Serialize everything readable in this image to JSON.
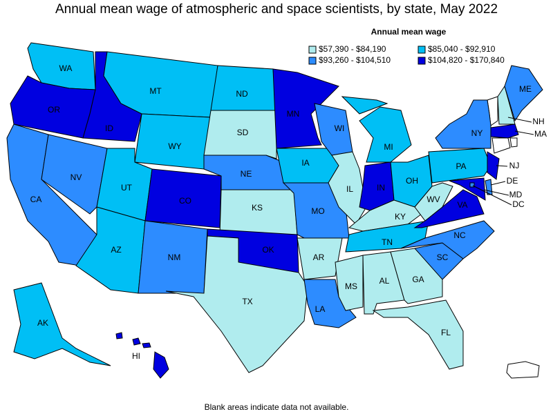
{
  "title": "Annual mean wage of atmospheric and space scientists, by state, May 2022",
  "legend": {
    "title": "Annual mean wage",
    "bins": [
      {
        "label": "$57,390 - $84,190",
        "color": "#b0ecee"
      },
      {
        "label": "$85,040 - $92,910",
        "color": "#00bff5"
      },
      {
        "label": "$93,260 - $104,510",
        "color": "#2d8cff"
      },
      {
        "label": "$104,820 - $170,840",
        "color": "#0000e0"
      }
    ]
  },
  "states": [
    {
      "label": "WA",
      "bin": 1
    },
    {
      "label": "OR",
      "bin": 3
    },
    {
      "label": "CA",
      "bin": 2
    },
    {
      "label": "NV",
      "bin": 2
    },
    {
      "label": "ID",
      "bin": 3
    },
    {
      "label": "MT",
      "bin": 1
    },
    {
      "label": "WY",
      "bin": 1
    },
    {
      "label": "UT",
      "bin": 1
    },
    {
      "label": "AZ",
      "bin": 1
    },
    {
      "label": "CO",
      "bin": 3
    },
    {
      "label": "NM",
      "bin": 2
    },
    {
      "label": "ND",
      "bin": 1
    },
    {
      "label": "SD",
      "bin": 0
    },
    {
      "label": "NE",
      "bin": 2
    },
    {
      "label": "KS",
      "bin": 0
    },
    {
      "label": "OK",
      "bin": 3
    },
    {
      "label": "TX",
      "bin": 0
    },
    {
      "label": "MN",
      "bin": 3
    },
    {
      "label": "IA",
      "bin": 1
    },
    {
      "label": "MO",
      "bin": 2
    },
    {
      "label": "AR",
      "bin": 0
    },
    {
      "label": "LA",
      "bin": 2
    },
    {
      "label": "WI",
      "bin": 2
    },
    {
      "label": "IL",
      "bin": 0
    },
    {
      "label": "MI",
      "bin": 1
    },
    {
      "label": "IN",
      "bin": 3
    },
    {
      "label": "OH",
      "bin": 1
    },
    {
      "label": "KY",
      "bin": 0
    },
    {
      "label": "TN",
      "bin": 1
    },
    {
      "label": "MS",
      "bin": 0
    },
    {
      "label": "AL",
      "bin": 0
    },
    {
      "label": "GA",
      "bin": 0
    },
    {
      "label": "FL",
      "bin": 0
    },
    {
      "label": "SC",
      "bin": 2
    },
    {
      "label": "NC",
      "bin": 2
    },
    {
      "label": "VA",
      "bin": 3
    },
    {
      "label": "WV",
      "bin": 0
    },
    {
      "label": "PA",
      "bin": 1
    },
    {
      "label": "NY",
      "bin": 2
    },
    {
      "label": "NH",
      "bin": 0
    },
    {
      "label": "ME",
      "bin": 2
    },
    {
      "label": "MA",
      "bin": 3
    },
    {
      "label": "NJ",
      "bin": 3
    },
    {
      "label": "DE",
      "bin": 2
    },
    {
      "label": "MD",
      "bin": 3
    },
    {
      "label": "DC",
      "bin": 2
    },
    {
      "label": "AK",
      "bin": 1
    },
    {
      "label": "HI",
      "bin": 3
    }
  ],
  "note": "Blank areas indicate data not available."
}
